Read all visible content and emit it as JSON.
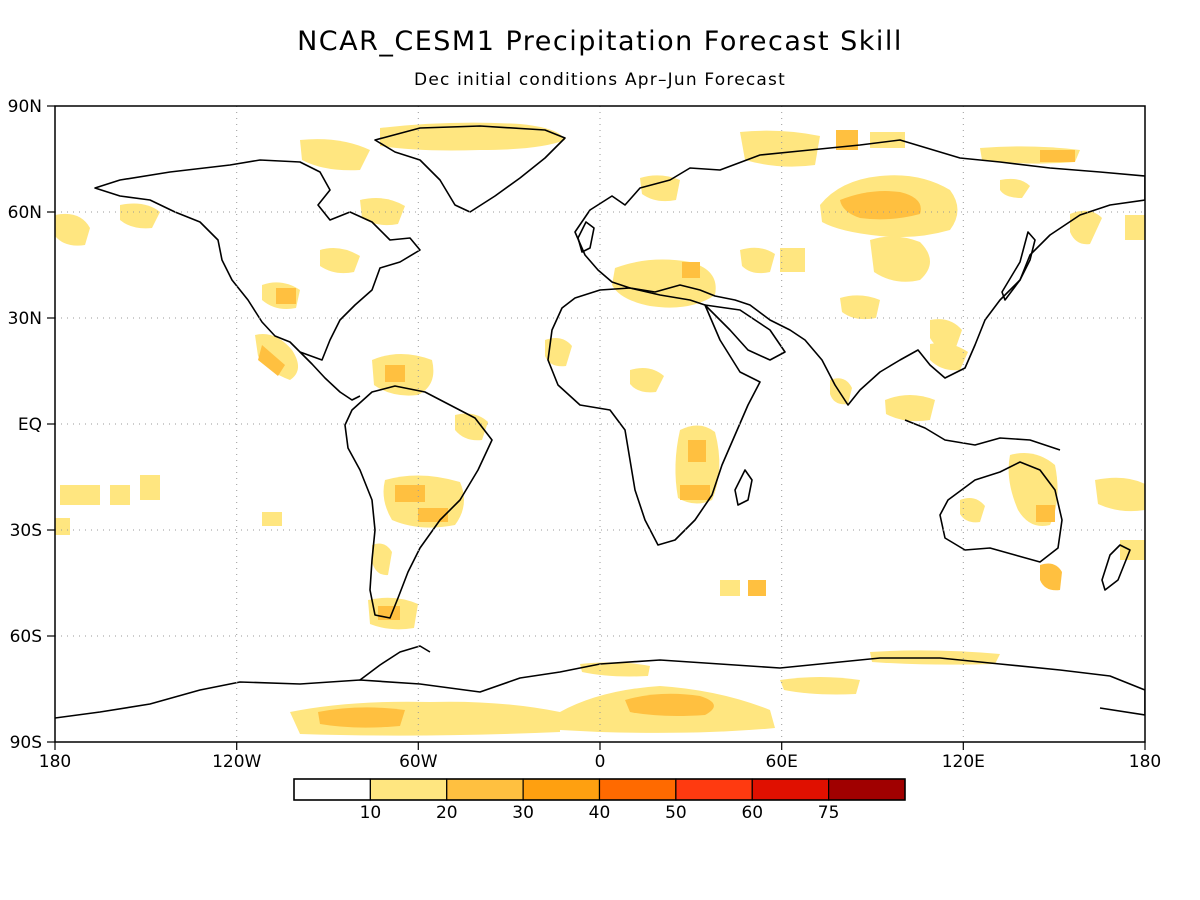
{
  "title": "NCAR_CESM1 Precipitation Forecast Skill",
  "subtitle": "Dec initial conditions   Apr–Jun Forecast",
  "map": {
    "lon_ticks": [
      "180",
      "120W",
      "60W",
      "0",
      "60E",
      "120E",
      "180"
    ],
    "lat_ticks": [
      "90N",
      "60N",
      "30N",
      "EQ",
      "30S",
      "60S",
      "90S"
    ],
    "grid": "dotted"
  },
  "colorbar": {
    "labels": [
      "10",
      "20",
      "30",
      "40",
      "50",
      "60",
      "75"
    ],
    "colors": [
      "#ffffff",
      "#ffe680",
      "#ffc040",
      "#ffa010",
      "#ff6a00",
      "#ff3a10",
      "#e01000",
      "#a00000"
    ]
  },
  "skill_regions": [
    {
      "name": "antarctica-east",
      "level": 1
    },
    {
      "name": "antarctica-west",
      "level": 2
    },
    {
      "name": "siberia",
      "level": 2
    },
    {
      "name": "south-america",
      "level": 2
    },
    {
      "name": "caribbean",
      "level": 2
    },
    {
      "name": "east-africa",
      "level": 2
    },
    {
      "name": "australia-east",
      "level": 3
    },
    {
      "name": "north-america",
      "level": 2
    },
    {
      "name": "mediterranean",
      "level": 1
    },
    {
      "name": "canadian-arctic",
      "level": 1
    }
  ]
}
